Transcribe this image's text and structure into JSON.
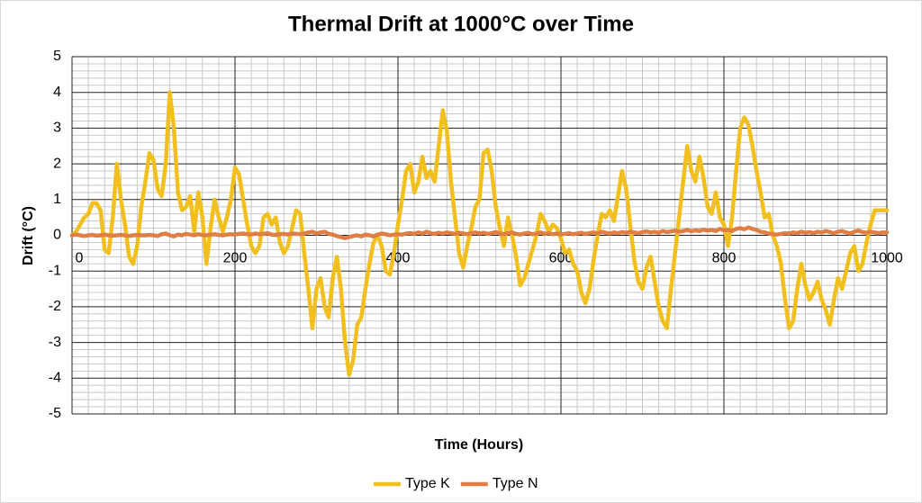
{
  "chart_data": {
    "type": "line",
    "title": "Thermal Drift at 1000°C over Time",
    "x_label": "Time (Hours)",
    "y_label": "Drift (°C)",
    "x": [
      0,
      5,
      10,
      15,
      20,
      25,
      30,
      35,
      40,
      45,
      50,
      55,
      60,
      65,
      70,
      75,
      80,
      85,
      90,
      95,
      100,
      105,
      110,
      115,
      120,
      125,
      130,
      135,
      140,
      145,
      150,
      155,
      160,
      165,
      170,
      175,
      180,
      185,
      190,
      195,
      200,
      205,
      210,
      215,
      220,
      225,
      230,
      235,
      240,
      245,
      250,
      255,
      260,
      265,
      270,
      275,
      280,
      285,
      290,
      295,
      300,
      305,
      310,
      315,
      320,
      325,
      330,
      335,
      340,
      345,
      350,
      355,
      360,
      365,
      370,
      375,
      380,
      385,
      390,
      395,
      400,
      405,
      410,
      415,
      420,
      425,
      430,
      435,
      440,
      445,
      450,
      455,
      460,
      465,
      470,
      475,
      480,
      485,
      490,
      495,
      500,
      505,
      510,
      515,
      520,
      525,
      530,
      535,
      540,
      545,
      550,
      555,
      560,
      565,
      570,
      575,
      580,
      585,
      590,
      595,
      600,
      605,
      610,
      615,
      620,
      625,
      630,
      635,
      640,
      645,
      650,
      655,
      660,
      665,
      670,
      675,
      680,
      685,
      690,
      695,
      700,
      705,
      710,
      715,
      720,
      725,
      730,
      735,
      740,
      745,
      750,
      755,
      760,
      765,
      770,
      775,
      780,
      785,
      790,
      795,
      800,
      805,
      810,
      815,
      820,
      825,
      830,
      835,
      840,
      845,
      850,
      855,
      860,
      865,
      870,
      875,
      880,
      885,
      890,
      895,
      900,
      905,
      910,
      915,
      920,
      925,
      930,
      935,
      940,
      945,
      950,
      955,
      960,
      965,
      970,
      975,
      980,
      985,
      990,
      995,
      1000
    ],
    "series": [
      {
        "name": "Type K",
        "color": "#f2c01e",
        "values": [
          0,
          0.1,
          0.3,
          0.5,
          0.6,
          0.9,
          0.9,
          0.7,
          -0.4,
          -0.5,
          0.5,
          2.0,
          1.0,
          0.3,
          -0.6,
          -0.8,
          -0.3,
          0.8,
          1.5,
          2.3,
          2.1,
          1.3,
          1.1,
          2.0,
          4.0,
          3.0,
          1.2,
          0.7,
          0.8,
          1.1,
          0.1,
          1.2,
          0.5,
          -0.8,
          0.2,
          1.0,
          0.5,
          0.1,
          0.5,
          1.0,
          1.9,
          1.7,
          1.0,
          0.3,
          -0.3,
          -0.5,
          -0.3,
          0.5,
          0.6,
          0.3,
          0.5,
          -0.2,
          -0.5,
          -0.3,
          0.2,
          0.7,
          0.6,
          -0.5,
          -1.5,
          -2.6,
          -1.5,
          -1.2,
          -2.0,
          -2.3,
          -1.2,
          -0.6,
          -1.5,
          -3.0,
          -3.9,
          -3.5,
          -2.5,
          -2.3,
          -1.5,
          -0.8,
          -0.2,
          0.0,
          -0.3,
          -1.0,
          -1.1,
          -0.5,
          0.3,
          1.0,
          1.8,
          2.0,
          1.2,
          1.5,
          2.2,
          1.6,
          1.8,
          1.5,
          2.5,
          3.5,
          2.9,
          1.5,
          0.5,
          -0.5,
          -0.9,
          -0.3,
          0.2,
          0.8,
          1.0,
          2.3,
          2.4,
          1.8,
          0.8,
          0.2,
          -0.3,
          0.5,
          0.0,
          -0.6,
          -1.4,
          -1.2,
          -0.8,
          -0.4,
          0.0,
          0.6,
          0.4,
          0.1,
          0.3,
          0.2,
          -0.1,
          -0.5,
          -0.4,
          -0.8,
          -1.0,
          -1.6,
          -1.9,
          -1.5,
          -0.7,
          0.0,
          0.6,
          0.5,
          0.7,
          0.4,
          1.1,
          1.8,
          1.3,
          0.3,
          -0.7,
          -1.3,
          -1.5,
          -0.9,
          -0.6,
          -1.3,
          -2.0,
          -2.4,
          -2.6,
          -1.5,
          -0.5,
          0.5,
          1.5,
          2.5,
          1.8,
          1.5,
          2.2,
          1.6,
          0.8,
          0.6,
          1.2,
          0.5,
          0.3,
          -0.3,
          0.5,
          1.8,
          3.0,
          3.3,
          3.1,
          2.5,
          1.8,
          1.2,
          0.5,
          0.6,
          0.0,
          -0.3,
          -0.8,
          -1.8,
          -2.6,
          -2.4,
          -1.5,
          -0.8,
          -1.4,
          -1.8,
          -1.6,
          -1.3,
          -1.8,
          -2.1,
          -2.5,
          -1.8,
          -1.2,
          -1.5,
          -1.0,
          -0.5,
          -0.3,
          -1.0,
          -0.8,
          -0.2,
          0.3,
          0.7,
          0.7,
          0.7,
          0.7
        ]
      },
      {
        "name": "Type N",
        "color": "#e07f45",
        "values": [
          0,
          0.02,
          0,
          -0.02,
          0,
          0.01,
          -0.01,
          0,
          0.02,
          0,
          -0.01,
          0,
          0.01,
          0,
          -0.02,
          0,
          0.01,
          0,
          0,
          0.01,
          0,
          -0.02,
          0.03,
          0.05,
          0,
          -0.03,
          0.02,
          0,
          0.04,
          0.02,
          0,
          0.03,
          0.01,
          0,
          0.02,
          0.03,
          0.01,
          0,
          0.02,
          0.03,
          0.02,
          0.04,
          0.05,
          0.03,
          0.02,
          0.05,
          0.03,
          0.04,
          0.06,
          0.02,
          0.01,
          0.03,
          0.04,
          0.02,
          0.05,
          0.04,
          0.03,
          0.05,
          0.08,
          0.1,
          0.05,
          0.08,
          0.1,
          0.04,
          0.02,
          -0.02,
          -0.05,
          -0.08,
          -0.05,
          -0.02,
          0,
          -0.03,
          0.02,
          0,
          -0.03,
          0.02,
          0.05,
          0.03,
          0,
          0.02,
          0.03,
          0.02,
          0.05,
          0.06,
          0.04,
          0.08,
          0.05,
          0.1,
          0.06,
          0.04,
          0.07,
          0.05,
          0.08,
          0.06,
          0.04,
          0.07,
          0.05,
          0.03,
          0.06,
          0.08,
          0.05,
          0.07,
          0.04,
          0.06,
          0.09,
          0.05,
          0.03,
          0.06,
          0.08,
          0.04,
          0.02,
          0.05,
          0.07,
          0.03,
          0.05,
          0.08,
          0.04,
          0.06,
          0.03,
          0.05,
          0.02,
          0.04,
          0.06,
          0.03,
          0.05,
          0.07,
          0.04,
          0.06,
          0.08,
          0.05,
          0.1,
          0.07,
          0.05,
          0.08,
          0.06,
          0.09,
          0.07,
          0.1,
          0.08,
          0.06,
          0.09,
          0.11,
          0.08,
          0.1,
          0.07,
          0.12,
          0.09,
          0.11,
          0.13,
          0.1,
          0.12,
          0.15,
          0.11,
          0.14,
          0.12,
          0.16,
          0.13,
          0.15,
          0.12,
          0.18,
          0.14,
          0.15,
          0.12,
          0.18,
          0.2,
          0.17,
          0.22,
          0.18,
          0.15,
          0.1,
          0.08,
          0.05,
          0.03,
          0.02,
          0.04,
          0.06,
          0.05,
          0.08,
          0.06,
          0.1,
          0.07,
          0.09,
          0.06,
          0.1,
          0.08,
          0.12,
          0.09,
          0.06,
          0.1,
          0.12,
          0.08,
          0.05,
          0.1,
          0.13,
          0.09,
          0.07,
          0.1,
          0.08,
          0.06,
          0.08,
          0.08
        ]
      }
    ],
    "xlim": [
      0,
      1000
    ],
    "xticks": [
      0,
      200,
      400,
      600,
      800,
      1000
    ],
    "ylim": [
      -5,
      5
    ],
    "yticks": [
      -5,
      -4,
      -3,
      -2,
      -1,
      0,
      1,
      2,
      3,
      4,
      5
    ],
    "grid": true,
    "legend": "bottom"
  }
}
